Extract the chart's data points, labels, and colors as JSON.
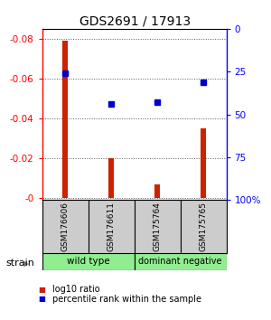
{
  "title": "GDS2691 / 17913",
  "samples": [
    "GSM176606",
    "GSM176611",
    "GSM175764",
    "GSM175765"
  ],
  "log10_ratio": [
    -0.079,
    -0.02,
    -0.007,
    -0.035
  ],
  "percentile_rank": [
    26,
    44,
    43,
    31
  ],
  "ylim_left": [
    0.001,
    -0.085
  ],
  "yticks_left": [
    0,
    -0.02,
    -0.04,
    -0.06,
    -0.08
  ],
  "ytick_labels_left": [
    "-0",
    "-0.02",
    "-0.04",
    "-0.06",
    "-0.08"
  ],
  "ylim_right": [
    100,
    0
  ],
  "yticks_right": [
    100,
    75,
    50,
    25,
    0
  ],
  "ytick_labels_right": [
    "100%",
    "75",
    "50",
    "25",
    "0"
  ],
  "bar_color": "#cc2200",
  "dot_color": "#0000cc",
  "bg_color": "#ffffff",
  "label_bg": "#cccccc",
  "group_color": "#90ee90",
  "group1_label": "wild type",
  "group2_label": "dominant negative",
  "strain_label": "strain",
  "legend_ratio_label": "log10 ratio",
  "legend_pct_label": "percentile rank within the sample",
  "bar_width": 0.12
}
